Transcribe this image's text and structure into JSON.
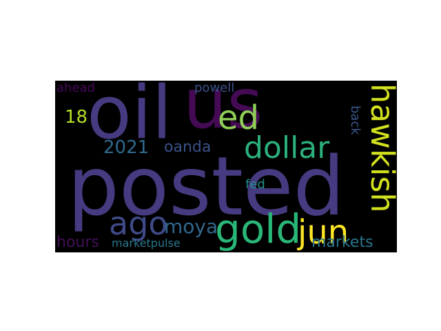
{
  "wordcloud": {
    "background": "#000000",
    "words": [
      {
        "text": "posted",
        "color": "#463b80"
      },
      {
        "text": "oil",
        "color": "#463b80"
      },
      {
        "text": "us",
        "color": "#440b54"
      },
      {
        "text": "ed",
        "color": "#8fcf56"
      },
      {
        "text": "hawkish",
        "color": "#d1e01f"
      },
      {
        "text": "dollar",
        "color": "#2cb17c"
      },
      {
        "text": "gold",
        "color": "#29b677"
      },
      {
        "text": "jun",
        "color": "#fde725"
      },
      {
        "text": "ago",
        "color": "#3f4a88"
      },
      {
        "text": "moya",
        "color": "#32678d"
      },
      {
        "text": "2021",
        "color": "#306b8e"
      },
      {
        "text": "oanda",
        "color": "#3a538b"
      },
      {
        "text": "18",
        "color": "#b5de2b"
      },
      {
        "text": "hours",
        "color": "#440f59"
      },
      {
        "text": "markets",
        "color": "#2b768e"
      },
      {
        "text": "marketpulse",
        "color": "#2a788e"
      },
      {
        "text": "powell",
        "color": "#3b518b"
      },
      {
        "text": "ahead",
        "color": "#46085c"
      },
      {
        "text": "back",
        "color": "#3a558c"
      },
      {
        "text": "fed",
        "color": "#21908c"
      }
    ]
  }
}
